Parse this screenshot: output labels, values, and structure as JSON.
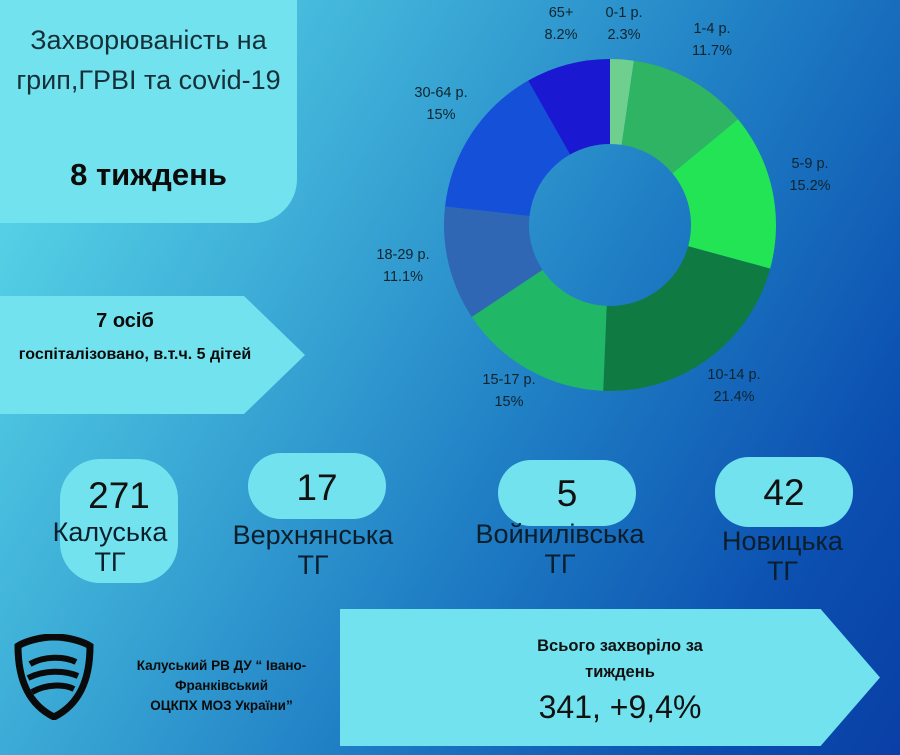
{
  "header": {
    "title": "Захворюваність на грип,ГРВІ та covid-19",
    "week": "8 тиждень"
  },
  "hospitalization": {
    "count": "7 осіб",
    "text": "госпіталізовано, в.т.ч. 5 дітей"
  },
  "regions": [
    {
      "count": "271",
      "name1": "Калуська",
      "name2": "ТГ"
    },
    {
      "count": "17",
      "name1": "Верхнянська",
      "name2": "ТГ"
    },
    {
      "count": "5",
      "name1": "Войнилівська",
      "name2": "ТГ"
    },
    {
      "count": "42",
      "name1": "Новицька",
      "name2": "ТГ"
    }
  ],
  "footer": {
    "org_line1": "Калуський РВ ДУ “ Івано-",
    "org_line2": "Франківський",
    "org_line3": "ОЦКПХ МОЗ України”",
    "total_label1": "Всього захворіло за",
    "total_label2": "тиждень",
    "total_value": "341, +9,4%"
  },
  "chart_data": {
    "type": "pie",
    "title": "",
    "categories": [
      "0-1 р.",
      "1-4 р.",
      "5-9 р.",
      "10-14 р.",
      "15-17 р.",
      "18-29 р.",
      "30-64 р.",
      "65+"
    ],
    "values": [
      2.3,
      11.7,
      15.2,
      21.4,
      15,
      11.1,
      15,
      8.2
    ],
    "value_labels": [
      "2.3%",
      "11.7%",
      "15.2%",
      "21.4%",
      "15%",
      "11.1%",
      "15%",
      "8.2%"
    ],
    "colors": [
      "#6fcf8e",
      "#2fb464",
      "#23e455",
      "#0f7a42",
      "#20b867",
      "#2f67b4",
      "#1450d8",
      "#1b18d2"
    ],
    "donut": true,
    "legend": "none"
  }
}
